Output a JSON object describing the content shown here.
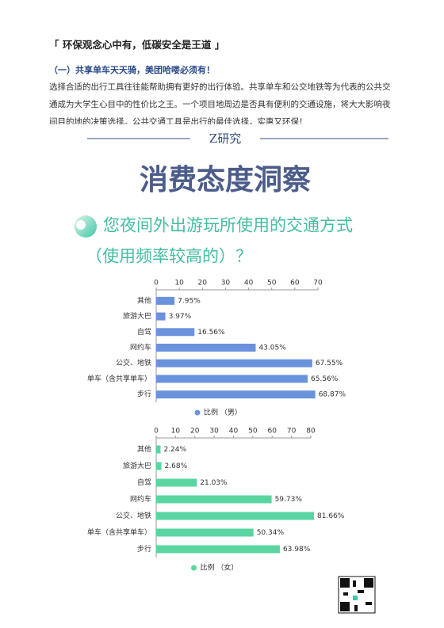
{
  "header": {
    "section": "「 环保观念心中有，低碳安全是王道 」",
    "subtitle": "（一）共享单车天天骑，美团哈喽必须有！",
    "paragraph": "选择合适的出行工具往往能帮助拥有更好的出行体验。共享单车和公交地铁等为代表的公共交通成为大学生心目中的性价比之王。一个项目地周边是否具有便利的交通设施，将大大影响夜间目的地的决策选择。公共交通工具是出行的最佳选择，实惠又环保！"
  },
  "banner": {
    "label": "Z研究",
    "title": "消费态度洞察",
    "question_line1": "您夜间外出游玩所使用的交通方式",
    "question_line2": "（使用频率较高的）？"
  },
  "chart_data": [
    {
      "type": "bar",
      "orientation": "horizontal",
      "categories": [
        "其他",
        "旅游大巴",
        "自驾",
        "网约车",
        "公交、地铁",
        "单车（含共享单车）",
        "步行"
      ],
      "series": [
        {
          "name": "比例 （男）",
          "color": "#6b92dc",
          "values": [
            7.95,
            3.97,
            16.56,
            43.05,
            67.55,
            65.56,
            68.87
          ],
          "value_labels": [
            "7.95%",
            "3.97%",
            "16.56%",
            "43.05%",
            "67.55%",
            "65.56%",
            "68.87%"
          ]
        }
      ],
      "xlim": [
        0,
        70
      ],
      "xticks": [
        0,
        10,
        20,
        30,
        40,
        50,
        60,
        70
      ],
      "grid": false,
      "legend": "bottom"
    },
    {
      "type": "bar",
      "orientation": "horizontal",
      "categories": [
        "其他",
        "旅游大巴",
        "自驾",
        "网约车",
        "公交、地铁",
        "单车（含共享单车）",
        "步行"
      ],
      "series": [
        {
          "name": "比例 （女）",
          "color": "#5ad5a2",
          "values": [
            2.24,
            2.68,
            21.03,
            59.73,
            81.66,
            50.34,
            63.98
          ],
          "value_labels": [
            "2.24%",
            "2.68%",
            "21.03%",
            "59.73%",
            "81.66%",
            "50.34%",
            "63.98%"
          ]
        }
      ],
      "xlim": [
        0,
        80
      ],
      "xticks": [
        0,
        10,
        20,
        30,
        40,
        50,
        60,
        70,
        80
      ],
      "grid": false,
      "legend": "bottom"
    }
  ]
}
